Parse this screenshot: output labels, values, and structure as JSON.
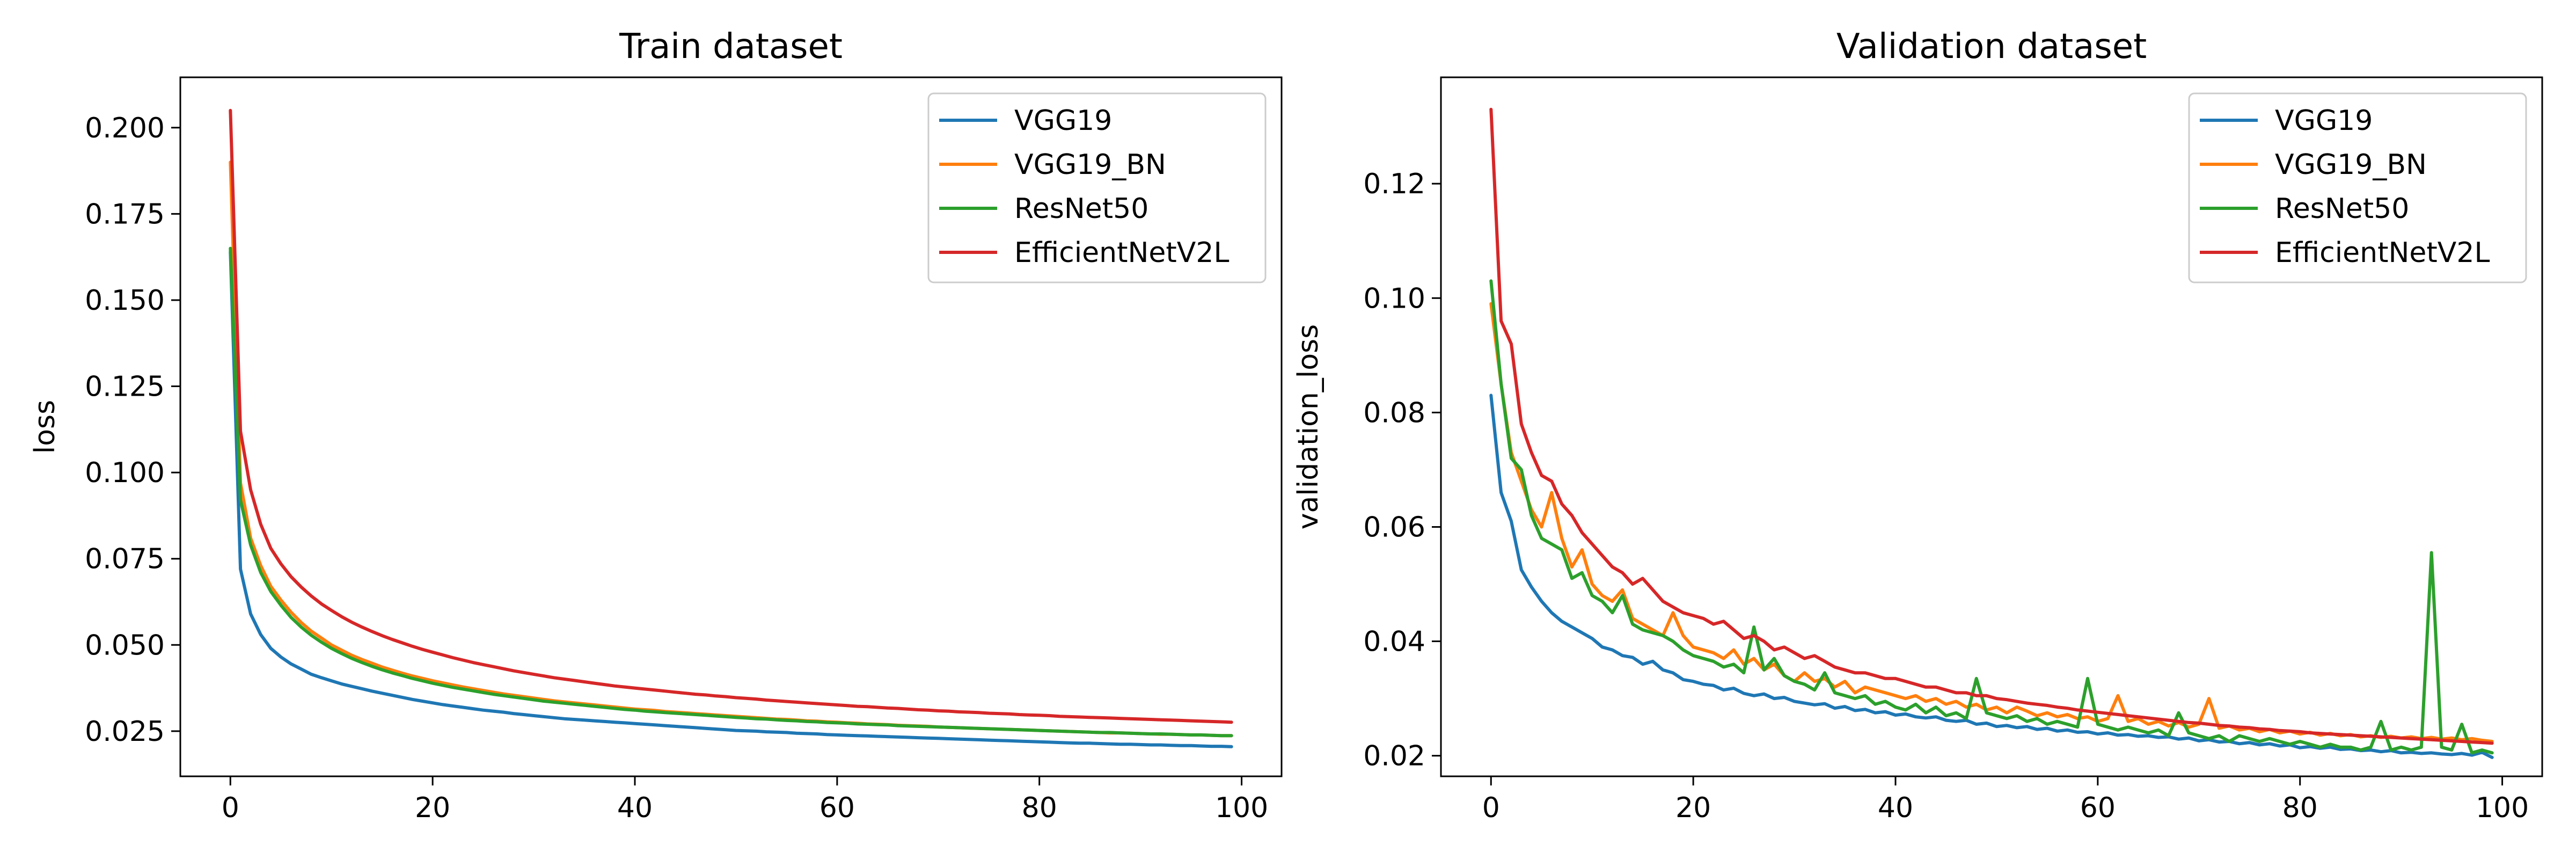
{
  "chart_data": [
    {
      "type": "line",
      "title": "Train dataset",
      "xlabel": "",
      "ylabel": "loss",
      "xlim": [
        -4.95,
        103.95
      ],
      "ylim": [
        0.0119,
        0.2146
      ],
      "xticks": [
        0,
        20,
        40,
        60,
        80,
        100
      ],
      "yticks": [
        0.025,
        0.05,
        0.075,
        0.1,
        0.125,
        0.15,
        0.175,
        0.2
      ],
      "ytick_labels": [
        "0.025",
        "0.050",
        "0.075",
        "0.100",
        "0.125",
        "0.150",
        "0.175",
        "0.200"
      ],
      "legend": "top-right",
      "grid": false,
      "series": [
        {
          "name": "VGG19",
          "color": "#1f77b4",
          "y": [
            0.164,
            0.072,
            0.059,
            0.053,
            0.049,
            0.0465,
            0.0445,
            0.043,
            0.0415,
            0.0405,
            0.0396,
            0.0387,
            0.038,
            0.0373,
            0.0366,
            0.036,
            0.0354,
            0.0348,
            0.0342,
            0.0337,
            0.0332,
            0.0327,
            0.0323,
            0.0319,
            0.0315,
            0.0311,
            0.0308,
            0.0305,
            0.0301,
            0.0298,
            0.0295,
            0.0292,
            0.0289,
            0.0286,
            0.0284,
            0.0282,
            0.028,
            0.0278,
            0.0276,
            0.0274,
            0.0272,
            0.027,
            0.0268,
            0.0266,
            0.0264,
            0.0262,
            0.026,
            0.0258,
            0.0256,
            0.0254,
            0.0252,
            0.0251,
            0.025,
            0.0248,
            0.0247,
            0.0246,
            0.0244,
            0.0243,
            0.0242,
            0.024,
            0.0239,
            0.0238,
            0.0237,
            0.0236,
            0.0235,
            0.0234,
            0.0233,
            0.0232,
            0.0231,
            0.023,
            0.0229,
            0.0228,
            0.0227,
            0.0226,
            0.0225,
            0.0224,
            0.0223,
            0.0222,
            0.0221,
            0.022,
            0.0219,
            0.0218,
            0.0217,
            0.0216,
            0.0215,
            0.0215,
            0.0214,
            0.0213,
            0.0212,
            0.0212,
            0.0211,
            0.021,
            0.021,
            0.0209,
            0.0208,
            0.0208,
            0.0207,
            0.0206,
            0.0206,
            0.0205
          ]
        },
        {
          "name": "VGG19_BN",
          "color": "#ff7f0e",
          "y": [
            0.19,
            0.097,
            0.081,
            0.073,
            0.067,
            0.063,
            0.0595,
            0.0565,
            0.054,
            0.052,
            0.05,
            0.0485,
            0.047,
            0.0458,
            0.0447,
            0.0436,
            0.0427,
            0.0418,
            0.041,
            0.0403,
            0.0396,
            0.039,
            0.0384,
            0.0378,
            0.0373,
            0.0368,
            0.0363,
            0.0358,
            0.0354,
            0.035,
            0.0346,
            0.0342,
            0.0338,
            0.0335,
            0.0332,
            0.0329,
            0.0326,
            0.0323,
            0.032,
            0.0317,
            0.0314,
            0.0312,
            0.031,
            0.0307,
            0.0305,
            0.0303,
            0.0301,
            0.0299,
            0.0297,
            0.0295,
            0.0293,
            0.0291,
            0.0289,
            0.0287,
            0.0285,
            0.0284,
            0.0282,
            0.028,
            0.0279,
            0.0277,
            0.0276,
            0.0274,
            0.0273,
            0.0271,
            0.027,
            0.0269,
            0.0267,
            0.0266,
            0.0265,
            0.0264,
            0.0262,
            0.0261,
            0.026,
            0.0259,
            0.0258,
            0.0257,
            0.0256,
            0.0255,
            0.0254,
            0.0253,
            0.0252,
            0.0251,
            0.025,
            0.0249,
            0.0248,
            0.0247,
            0.0246,
            0.0245,
            0.0245,
            0.0244,
            0.0243,
            0.0242,
            0.0241,
            0.0241,
            0.024,
            0.0239,
            0.0239,
            0.0238,
            0.0237,
            0.0237
          ]
        },
        {
          "name": "ResNet50",
          "color": "#2ca02c",
          "y": [
            0.165,
            0.092,
            0.079,
            0.071,
            0.0655,
            0.0615,
            0.058,
            0.0552,
            0.0528,
            0.0508,
            0.049,
            0.0475,
            0.0461,
            0.0449,
            0.0438,
            0.0428,
            0.0419,
            0.0411,
            0.0403,
            0.0396,
            0.0389,
            0.0383,
            0.0377,
            0.0372,
            0.0367,
            0.0362,
            0.0357,
            0.0353,
            0.0349,
            0.0345,
            0.0341,
            0.0337,
            0.0334,
            0.0331,
            0.0328,
            0.0325,
            0.0322,
            0.0319,
            0.0316,
            0.0313,
            0.0311,
            0.0308,
            0.0306,
            0.0304,
            0.0302,
            0.03,
            0.0298,
            0.0296,
            0.0294,
            0.0292,
            0.029,
            0.0288,
            0.0286,
            0.0285,
            0.0283,
            0.0281,
            0.028,
            0.0278,
            0.0277,
            0.0275,
            0.0274,
            0.0273,
            0.0271,
            0.027,
            0.0269,
            0.0268,
            0.0266,
            0.0265,
            0.0264,
            0.0263,
            0.0262,
            0.0261,
            0.026,
            0.0259,
            0.0258,
            0.0257,
            0.0256,
            0.0255,
            0.0254,
            0.0253,
            0.0252,
            0.0251,
            0.025,
            0.0249,
            0.0248,
            0.0247,
            0.0246,
            0.0246,
            0.0245,
            0.0244,
            0.0243,
            0.0242,
            0.0242,
            0.0241,
            0.024,
            0.0239,
            0.0239,
            0.0238,
            0.0237,
            0.0237
          ]
        },
        {
          "name": "EfficientNetV2L",
          "color": "#d62728",
          "y": [
            0.205,
            0.112,
            0.095,
            0.085,
            0.078,
            0.0735,
            0.0698,
            0.0668,
            0.0642,
            0.0619,
            0.06,
            0.0582,
            0.0566,
            0.0552,
            0.0539,
            0.0527,
            0.0516,
            0.0506,
            0.0496,
            0.0487,
            0.0479,
            0.0471,
            0.0463,
            0.0456,
            0.0449,
            0.0443,
            0.0437,
            0.0431,
            0.0425,
            0.042,
            0.0415,
            0.041,
            0.0405,
            0.0401,
            0.0397,
            0.0393,
            0.0389,
            0.0385,
            0.0381,
            0.0378,
            0.0375,
            0.0372,
            0.0369,
            0.0366,
            0.0363,
            0.036,
            0.0357,
            0.0355,
            0.0352,
            0.035,
            0.0347,
            0.0345,
            0.0343,
            0.034,
            0.0338,
            0.0336,
            0.0334,
            0.0332,
            0.033,
            0.0328,
            0.0326,
            0.0324,
            0.0322,
            0.0321,
            0.0319,
            0.0317,
            0.0316,
            0.0314,
            0.0312,
            0.0311,
            0.0309,
            0.0308,
            0.0306,
            0.0305,
            0.0304,
            0.0302,
            0.0301,
            0.03,
            0.0298,
            0.0297,
            0.0296,
            0.0295,
            0.0293,
            0.0292,
            0.0291,
            0.029,
            0.0289,
            0.0288,
            0.0287,
            0.0286,
            0.0285,
            0.0284,
            0.0283,
            0.0282,
            0.0281,
            0.028,
            0.0279,
            0.0278,
            0.0277,
            0.0276
          ]
        }
      ]
    },
    {
      "type": "line",
      "title": "Validation dataset",
      "xlabel": "",
      "ylabel": "validation_loss",
      "xlim": [
        -4.95,
        103.95
      ],
      "ylim": [
        0.0164,
        0.1386
      ],
      "xticks": [
        0,
        20,
        40,
        60,
        80,
        100
      ],
      "yticks": [
        0.02,
        0.04,
        0.06,
        0.08,
        0.1,
        0.12
      ],
      "ytick_labels": [
        "0.02",
        "0.04",
        "0.06",
        "0.08",
        "0.10",
        "0.12"
      ],
      "legend": "top-right",
      "grid": false,
      "series": [
        {
          "name": "VGG19",
          "color": "#1f77b4",
          "y": [
            0.083,
            0.066,
            0.061,
            0.0525,
            0.0495,
            0.047,
            0.045,
            0.0435,
            0.0425,
            0.0415,
            0.0405,
            0.039,
            0.0385,
            0.0375,
            0.0372,
            0.036,
            0.0365,
            0.035,
            0.0345,
            0.0333,
            0.033,
            0.0325,
            0.0323,
            0.0315,
            0.0318,
            0.0309,
            0.0305,
            0.0308,
            0.03,
            0.0302,
            0.0295,
            0.0292,
            0.0289,
            0.0291,
            0.0283,
            0.0286,
            0.0279,
            0.0281,
            0.0275,
            0.0277,
            0.0271,
            0.0273,
            0.0268,
            0.0266,
            0.0268,
            0.0262,
            0.026,
            0.0262,
            0.0255,
            0.0257,
            0.0251,
            0.0253,
            0.0249,
            0.0251,
            0.0246,
            0.0248,
            0.0243,
            0.0245,
            0.0241,
            0.0242,
            0.0238,
            0.024,
            0.0236,
            0.0237,
            0.0234,
            0.0235,
            0.0232,
            0.0233,
            0.0229,
            0.0231,
            0.0226,
            0.0228,
            0.0224,
            0.0225,
            0.0221,
            0.0223,
            0.0219,
            0.0221,
            0.0217,
            0.0219,
            0.0214,
            0.0216,
            0.0213,
            0.0215,
            0.0211,
            0.0212,
            0.0209,
            0.021,
            0.0207,
            0.0209,
            0.0205,
            0.0206,
            0.0204,
            0.0205,
            0.0203,
            0.0202,
            0.0204,
            0.0201,
            0.0206,
            0.0197
          ]
        },
        {
          "name": "VGG19_BN",
          "color": "#ff7f0e",
          "y": [
            0.099,
            0.085,
            0.073,
            0.068,
            0.063,
            0.06,
            0.066,
            0.058,
            0.053,
            0.056,
            0.05,
            0.048,
            0.047,
            0.049,
            0.044,
            0.043,
            0.042,
            0.041,
            0.045,
            0.041,
            0.039,
            0.0385,
            0.038,
            0.037,
            0.0385,
            0.036,
            0.037,
            0.035,
            0.036,
            0.034,
            0.033,
            0.0345,
            0.033,
            0.0335,
            0.032,
            0.033,
            0.031,
            0.032,
            0.0315,
            0.031,
            0.0305,
            0.03,
            0.0305,
            0.0295,
            0.03,
            0.029,
            0.0295,
            0.0285,
            0.029,
            0.028,
            0.0285,
            0.0275,
            0.0285,
            0.0278,
            0.027,
            0.0275,
            0.0268,
            0.0272,
            0.0265,
            0.0268,
            0.026,
            0.0265,
            0.0305,
            0.026,
            0.0265,
            0.0255,
            0.026,
            0.0252,
            0.0258,
            0.025,
            0.0255,
            0.03,
            0.0248,
            0.0252,
            0.0245,
            0.0248,
            0.0242,
            0.0246,
            0.024,
            0.0243,
            0.0238,
            0.0241,
            0.0236,
            0.0239,
            0.0235,
            0.0237,
            0.0233,
            0.0235,
            0.0232,
            0.0234,
            0.0231,
            0.0233,
            0.023,
            0.0232,
            0.0229,
            0.0231,
            0.0228,
            0.023,
            0.0227,
            0.0225
          ]
        },
        {
          "name": "ResNet50",
          "color": "#2ca02c",
          "y": [
            0.103,
            0.085,
            0.072,
            0.07,
            0.062,
            0.058,
            0.057,
            0.056,
            0.051,
            0.052,
            0.048,
            0.047,
            0.045,
            0.048,
            0.043,
            0.042,
            0.0415,
            0.041,
            0.04,
            0.0385,
            0.0375,
            0.037,
            0.0365,
            0.0355,
            0.036,
            0.0345,
            0.0425,
            0.035,
            0.037,
            0.034,
            0.033,
            0.0325,
            0.0315,
            0.0345,
            0.031,
            0.0305,
            0.03,
            0.0305,
            0.029,
            0.0295,
            0.0285,
            0.028,
            0.029,
            0.0275,
            0.0285,
            0.027,
            0.0275,
            0.0265,
            0.0335,
            0.0275,
            0.027,
            0.0265,
            0.027,
            0.026,
            0.0265,
            0.0255,
            0.026,
            0.0255,
            0.025,
            0.0335,
            0.0255,
            0.025,
            0.0245,
            0.025,
            0.0245,
            0.024,
            0.0245,
            0.0235,
            0.0275,
            0.024,
            0.0235,
            0.023,
            0.0235,
            0.0225,
            0.0235,
            0.023,
            0.0225,
            0.023,
            0.0225,
            0.022,
            0.0225,
            0.022,
            0.0215,
            0.022,
            0.0215,
            0.0215,
            0.021,
            0.0215,
            0.026,
            0.021,
            0.0215,
            0.021,
            0.0215,
            0.0555,
            0.0215,
            0.021,
            0.0255,
            0.0205,
            0.021,
            0.0205
          ]
        },
        {
          "name": "EfficientNetV2L",
          "color": "#d62728",
          "y": [
            0.133,
            0.096,
            0.092,
            0.078,
            0.073,
            0.069,
            0.068,
            0.064,
            0.062,
            0.059,
            0.057,
            0.055,
            0.053,
            0.052,
            0.05,
            0.051,
            0.049,
            0.047,
            0.046,
            0.045,
            0.0445,
            0.044,
            0.043,
            0.0435,
            0.042,
            0.0405,
            0.041,
            0.04,
            0.0385,
            0.039,
            0.038,
            0.037,
            0.0375,
            0.0365,
            0.0355,
            0.035,
            0.0345,
            0.0345,
            0.034,
            0.0335,
            0.0335,
            0.033,
            0.0325,
            0.032,
            0.032,
            0.0315,
            0.031,
            0.031,
            0.0305,
            0.0305,
            0.03,
            0.0298,
            0.0295,
            0.0292,
            0.029,
            0.0288,
            0.0285,
            0.0283,
            0.028,
            0.0278,
            0.0276,
            0.0274,
            0.0272,
            0.027,
            0.0268,
            0.0266,
            0.0264,
            0.0262,
            0.026,
            0.0258,
            0.0257,
            0.0255,
            0.0253,
            0.0252,
            0.025,
            0.0249,
            0.0247,
            0.0246,
            0.0244,
            0.0243,
            0.0242,
            0.024,
            0.0239,
            0.0238,
            0.0237,
            0.0236,
            0.0235,
            0.0234,
            0.0233,
            0.0232,
            0.0231,
            0.023,
            0.0229,
            0.0228,
            0.0227,
            0.0226,
            0.0225,
            0.0224,
            0.0223,
            0.0222
          ]
        }
      ]
    }
  ]
}
